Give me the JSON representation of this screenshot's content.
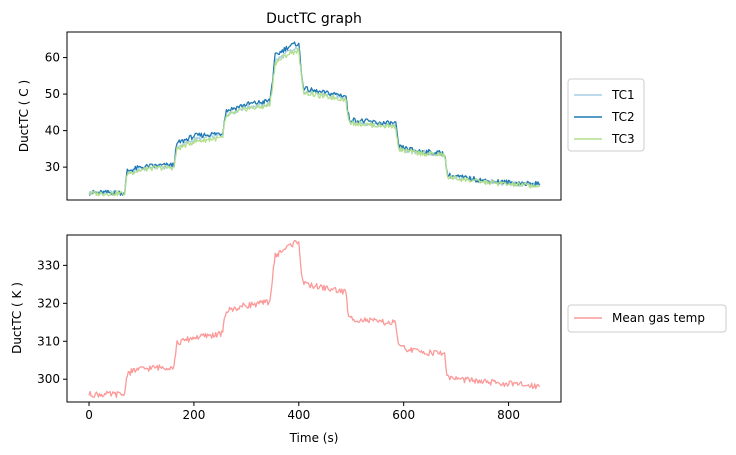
{
  "chart_data": [
    {
      "type": "line",
      "title": "DuctTC graph",
      "xlabel": "",
      "ylabel": "DuctTC ( C )",
      "xlim": [
        -42,
        900
      ],
      "ylim": [
        21,
        67
      ],
      "yticks": [
        30,
        40,
        50,
        60
      ],
      "x_axis_visible": false,
      "legend_placement": "right",
      "grid": false,
      "series": [
        {
          "name": "TC1",
          "color": "#a6cee3",
          "x": [
            0,
            68,
            70,
            73,
            100,
            120,
            162,
            165,
            168,
            200,
            230,
            255,
            258,
            262,
            300,
            330,
            345,
            350,
            355,
            380,
            400,
            405,
            410,
            440,
            470,
            490,
            493,
            497,
            530,
            560,
            585,
            588,
            591,
            620,
            650,
            678,
            681,
            684,
            720,
            760,
            800,
            860
          ],
          "y": [
            23,
            23,
            25.5,
            28.5,
            29.5,
            30,
            30.2,
            33.5,
            35.5,
            37.5,
            38.2,
            38.8,
            42,
            44.5,
            46.5,
            47,
            47.5,
            53,
            59,
            61.5,
            62.5,
            55,
            51,
            50,
            49.5,
            49,
            45,
            42.5,
            42,
            41.5,
            41.5,
            37.5,
            35,
            34.2,
            33.8,
            33.5,
            30,
            27.5,
            26.8,
            26,
            25.5,
            25
          ]
        },
        {
          "name": "TC2",
          "color": "#1f78b4",
          "x": [
            0,
            68,
            70,
            73,
            100,
            120,
            162,
            165,
            168,
            200,
            230,
            255,
            258,
            262,
            300,
            330,
            345,
            350,
            355,
            380,
            400,
            405,
            410,
            440,
            470,
            490,
            493,
            497,
            530,
            560,
            585,
            588,
            591,
            620,
            650,
            678,
            681,
            684,
            720,
            760,
            800,
            860
          ],
          "y": [
            23,
            23,
            25.8,
            29,
            30,
            30.3,
            30.6,
            34,
            36.5,
            38.5,
            39,
            39.3,
            43,
            45.5,
            47.2,
            47.8,
            48.2,
            54,
            60.5,
            63,
            64,
            55.5,
            51.5,
            50.5,
            50,
            49.5,
            45.5,
            43,
            42.5,
            42,
            42,
            38,
            35.5,
            34.6,
            34.1,
            33.8,
            30.2,
            27.8,
            27,
            26.2,
            25.8,
            25.3
          ]
        },
        {
          "name": "TC3",
          "color": "#b2df8a",
          "x": [
            0,
            68,
            70,
            73,
            100,
            120,
            162,
            165,
            168,
            200,
            230,
            255,
            258,
            262,
            300,
            330,
            345,
            350,
            355,
            380,
            400,
            405,
            410,
            440,
            470,
            490,
            493,
            497,
            530,
            560,
            585,
            588,
            591,
            620,
            650,
            678,
            681,
            684,
            720,
            760,
            800,
            860
          ],
          "y": [
            22.8,
            22.8,
            25.3,
            28.3,
            29.2,
            29.7,
            29.9,
            33,
            35,
            37,
            37.6,
            38,
            41.5,
            44,
            46,
            46.5,
            47,
            52.5,
            58.5,
            61,
            62,
            54.5,
            50.5,
            49.5,
            49,
            48.5,
            44.5,
            42.2,
            41.7,
            41.3,
            41.2,
            37.2,
            34.8,
            34,
            33.6,
            33.3,
            29.8,
            27.3,
            26.5,
            25.8,
            25.3,
            24.8
          ]
        }
      ]
    },
    {
      "type": "line",
      "title": "",
      "xlabel": "Time (s)",
      "ylabel": "DuctTC ( K )",
      "xlim": [
        -42,
        900
      ],
      "ylim": [
        294,
        338
      ],
      "xticks": [
        0,
        200,
        400,
        600,
        800
      ],
      "yticks": [
        300,
        310,
        320,
        330
      ],
      "legend_placement": "right",
      "grid": false,
      "series": [
        {
          "name": "Mean gas temp",
          "color": "#fb9a99",
          "x": [
            0,
            68,
            70,
            73,
            90,
            120,
            162,
            165,
            168,
            200,
            230,
            255,
            258,
            262,
            300,
            330,
            345,
            350,
            355,
            380,
            400,
            405,
            410,
            440,
            470,
            490,
            493,
            497,
            530,
            560,
            585,
            588,
            591,
            620,
            650,
            678,
            681,
            684,
            720,
            760,
            800,
            860
          ],
          "y": [
            296,
            296,
            299,
            301.5,
            302.5,
            303,
            303.3,
            307,
            309.5,
            311,
            311.5,
            312,
            316,
            318,
            319.5,
            320,
            320.5,
            327,
            332.5,
            335,
            336.5,
            328,
            325,
            324.3,
            323.5,
            323,
            318,
            316,
            315.5,
            315,
            314.8,
            311,
            308.5,
            307.5,
            307,
            306.8,
            302.8,
            300.5,
            299.8,
            299.2,
            298.8,
            298.2
          ]
        }
      ]
    }
  ]
}
